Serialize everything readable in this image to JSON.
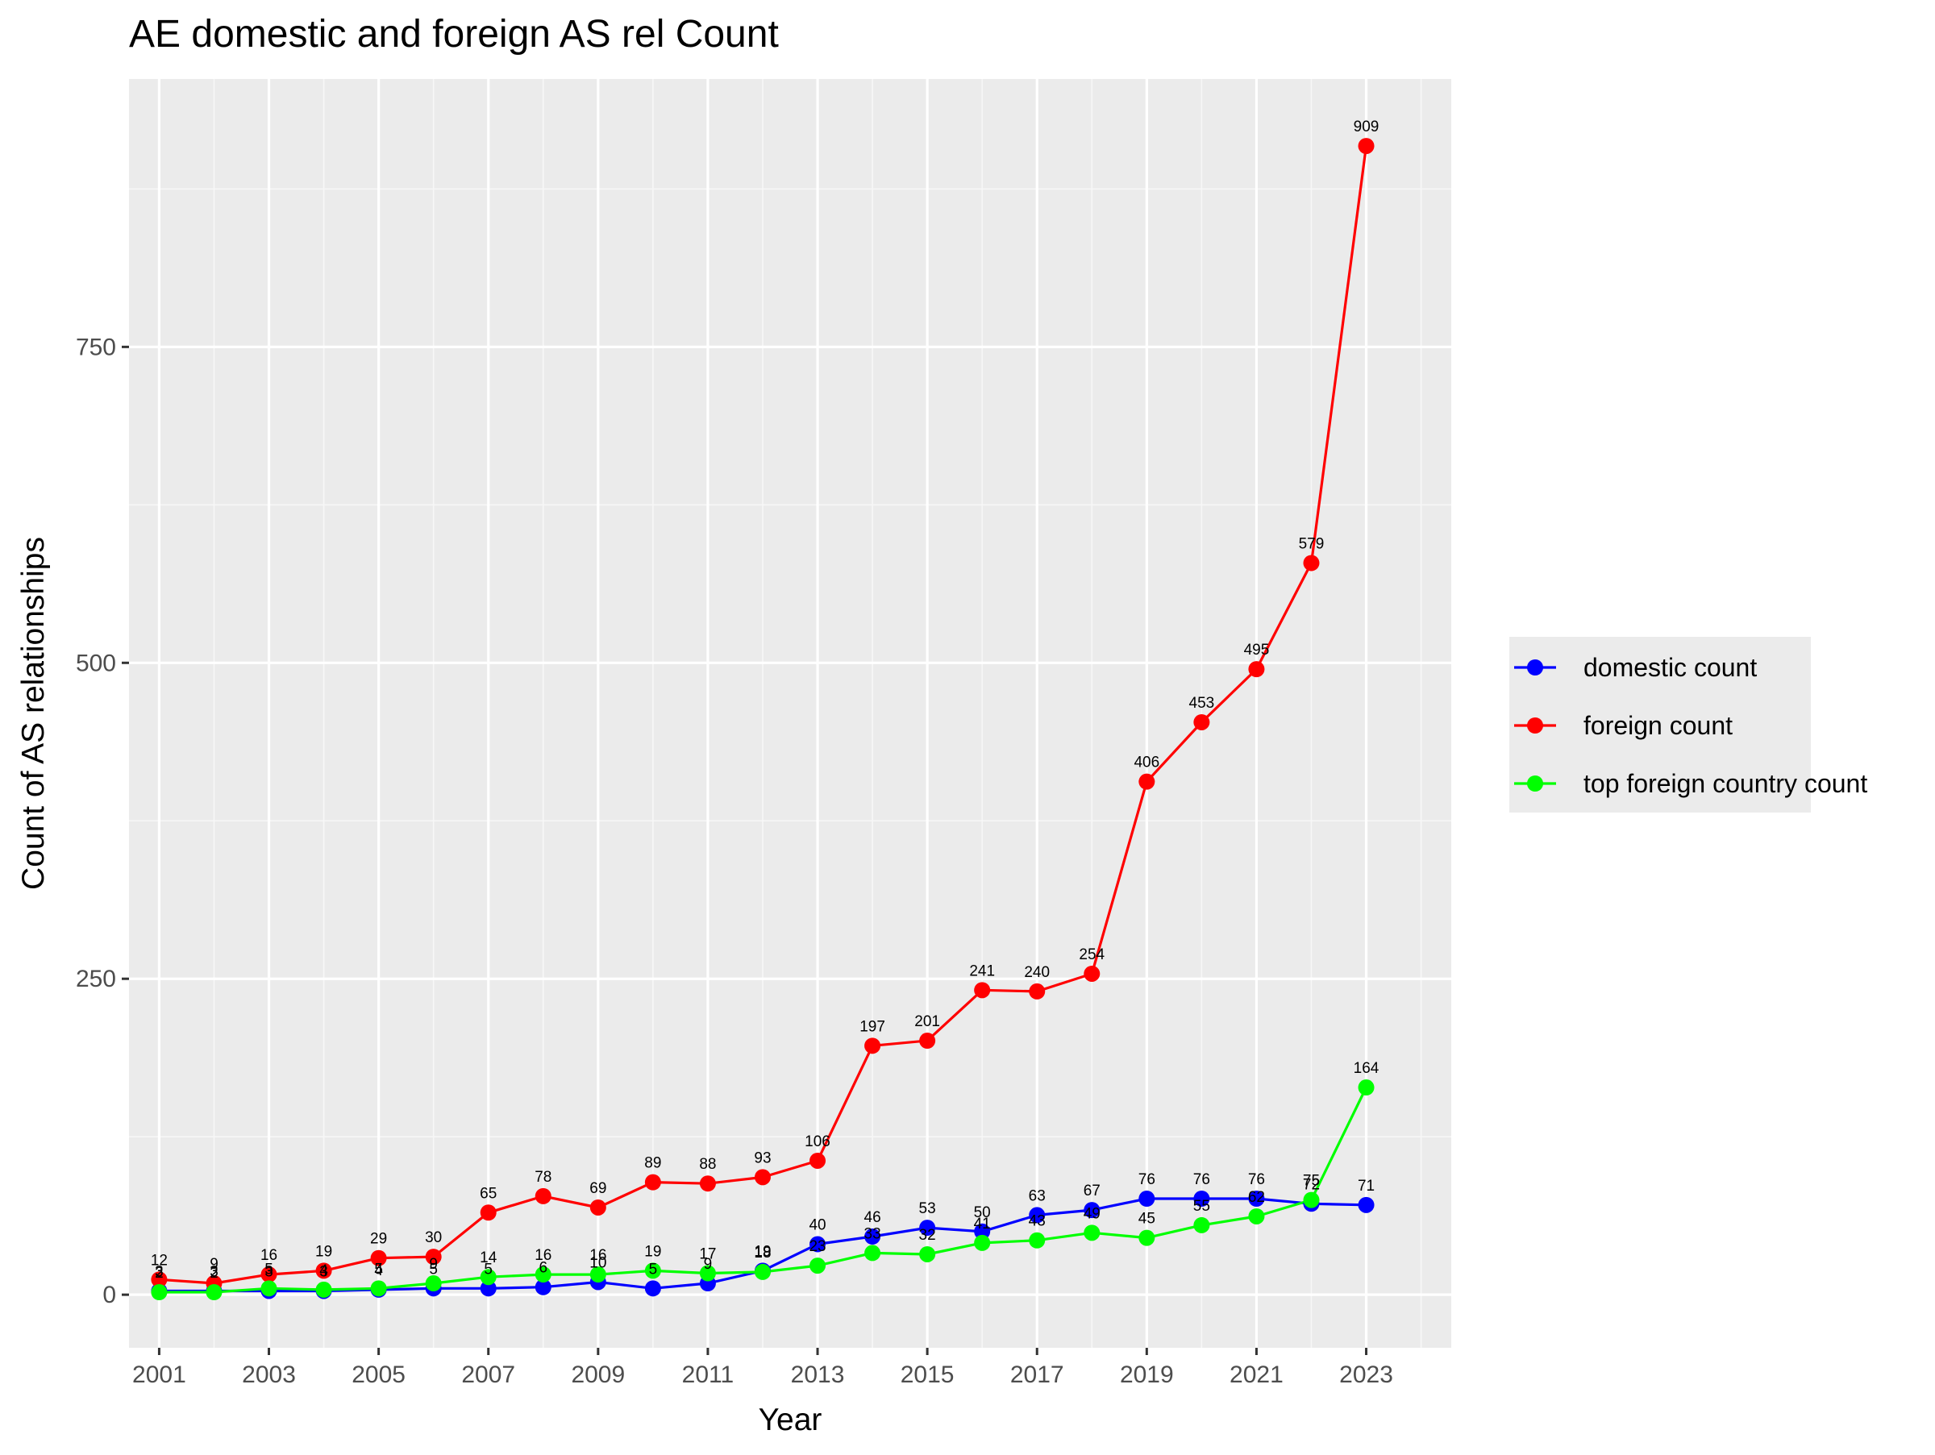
{
  "chart_data": {
    "type": "line",
    "title": "AE domestic and foreign AS rel Count",
    "xlabel": "Year",
    "ylabel": "Count of AS relationships",
    "x": [
      2001,
      2002,
      2003,
      2004,
      2005,
      2006,
      2007,
      2008,
      2009,
      2010,
      2011,
      2012,
      2013,
      2014,
      2015,
      2016,
      2017,
      2018,
      2019,
      2020,
      2021,
      2022,
      2023
    ],
    "x_ticks": [
      "2001",
      "2003",
      "2005",
      "2007",
      "2009",
      "2011",
      "2013",
      "2015",
      "2017",
      "2019",
      "2021",
      "2023"
    ],
    "y_ticks": [
      "0",
      "250",
      "500",
      "750"
    ],
    "xlim": [
      2000.45,
      2024.55
    ],
    "ylim": [
      -42,
      962
    ],
    "grid": true,
    "legend_position": "right",
    "series": [
      {
        "name": "domestic count",
        "color": "#0000ff",
        "values": [
          3,
          3,
          3,
          3,
          4,
          5,
          5,
          6,
          10,
          5,
          9,
          19,
          40,
          46,
          53,
          50,
          63,
          67,
          76,
          76,
          76,
          72,
          71
        ],
        "labels": [
          "3",
          "3",
          "3",
          "3",
          "4",
          "5",
          "5",
          "6",
          "10",
          "5",
          "9",
          "19",
          "40",
          "46",
          "53",
          "50",
          "63",
          "67",
          "76",
          "76",
          "76",
          "72",
          "71"
        ]
      },
      {
        "name": "foreign count",
        "color": "#ff0000",
        "values": [
          12,
          9,
          16,
          19,
          29,
          30,
          65,
          78,
          69,
          89,
          88,
          93,
          106,
          197,
          201,
          241,
          240,
          254,
          406,
          453,
          495,
          579,
          909
        ],
        "labels": [
          "12",
          "9",
          "16",
          "19",
          "29",
          "30",
          "65",
          "78",
          "69",
          "89",
          "88",
          "93",
          "106",
          "197",
          "201",
          "241",
          "240",
          "254",
          "406",
          "453",
          "495",
          "579",
          "909"
        ]
      },
      {
        "name": "top foreign country count",
        "color": "#00ff00",
        "values": [
          2,
          2,
          5,
          4,
          5,
          9,
          14,
          16,
          16,
          19,
          17,
          18,
          23,
          33,
          32,
          41,
          43,
          49,
          45,
          55,
          62,
          75,
          164
        ],
        "labels": [
          "2",
          "2",
          "5",
          "4",
          "5",
          "9",
          "14",
          "16",
          "16",
          "19",
          "17",
          "18",
          "23",
          "33",
          "32",
          "41",
          "43",
          "49",
          "45",
          "55",
          "62",
          "75",
          "164"
        ]
      }
    ]
  }
}
